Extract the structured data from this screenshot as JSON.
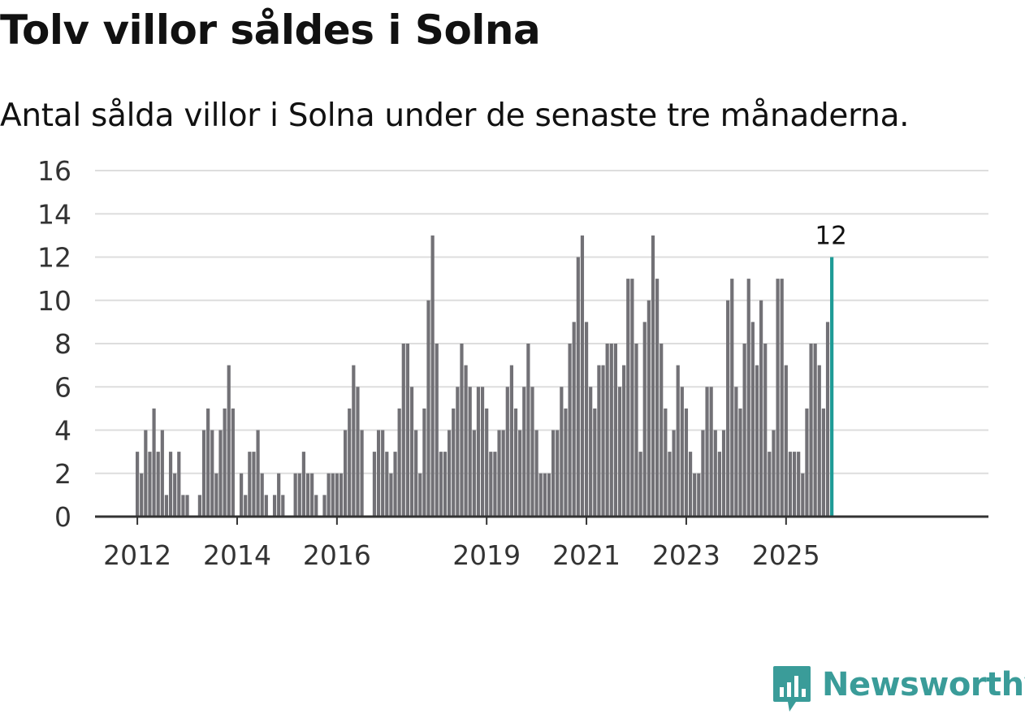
{
  "title": "Tolv villor såldes i Solna",
  "subtitle": "Antal sålda villor i Solna under de senaste tre månaderna.",
  "logo": {
    "text": "Newsworthy",
    "icon": "newsworthy-logo-icon"
  },
  "colors": {
    "bar": "#727176",
    "highlight": "#1e9b96",
    "grid": "#dddddd",
    "axis": "#333333",
    "text": "#333333",
    "brand": "#3a9c99"
  },
  "chart_data": {
    "type": "bar",
    "title": "Tolv villor såldes i Solna",
    "subtitle": "Antal sålda villor i Solna under de senaste tre månaderna.",
    "xlabel": "",
    "ylabel": "",
    "ylim": [
      0,
      16
    ],
    "yticks": [
      0,
      2,
      4,
      6,
      8,
      10,
      12,
      14,
      16
    ],
    "grid": true,
    "x_start": "2012-01",
    "x_end": "2025-12",
    "xticks": [
      {
        "label": "2012",
        "month": "2012-01"
      },
      {
        "label": "2014",
        "month": "2014-01"
      },
      {
        "label": "2016",
        "month": "2016-01"
      },
      {
        "label": "2019",
        "month": "2019-01"
      },
      {
        "label": "2021",
        "month": "2021-01"
      },
      {
        "label": "2023",
        "month": "2023-01"
      },
      {
        "label": "2025",
        "month": "2025-01"
      }
    ],
    "values": [
      3,
      2,
      4,
      3,
      5,
      3,
      4,
      1,
      3,
      2,
      3,
      1,
      1,
      0,
      0,
      1,
      4,
      5,
      4,
      2,
      4,
      5,
      7,
      5,
      0,
      2,
      1,
      3,
      3,
      4,
      2,
      1,
      0,
      1,
      2,
      1,
      0,
      0,
      2,
      2,
      3,
      2,
      2,
      1,
      0,
      1,
      2,
      2,
      2,
      2,
      4,
      5,
      7,
      6,
      4,
      0,
      0,
      3,
      4,
      4,
      3,
      2,
      3,
      5,
      8,
      8,
      6,
      4,
      2,
      5,
      10,
      13,
      8,
      3,
      3,
      4,
      5,
      6,
      8,
      7,
      6,
      4,
      6,
      6,
      5,
      3,
      3,
      4,
      4,
      6,
      7,
      5,
      4,
      6,
      8,
      6,
      4,
      2,
      2,
      2,
      4,
      4,
      6,
      5,
      8,
      9,
      12,
      13,
      9,
      6,
      5,
      7,
      7,
      8,
      8,
      8,
      6,
      7,
      11,
      11,
      8,
      3,
      9,
      10,
      13,
      11,
      8,
      5,
      3,
      4,
      7,
      6,
      5,
      3,
      2,
      2,
      4,
      6,
      6,
      4,
      3,
      4,
      10,
      11,
      6,
      5,
      8,
      11,
      9,
      7,
      10,
      8,
      3,
      4,
      11,
      11,
      7,
      3,
      3,
      3,
      2,
      5,
      8,
      8,
      7,
      5,
      9,
      12
    ],
    "highlight_last": true,
    "annotation": {
      "text": "12",
      "target": "last"
    }
  }
}
